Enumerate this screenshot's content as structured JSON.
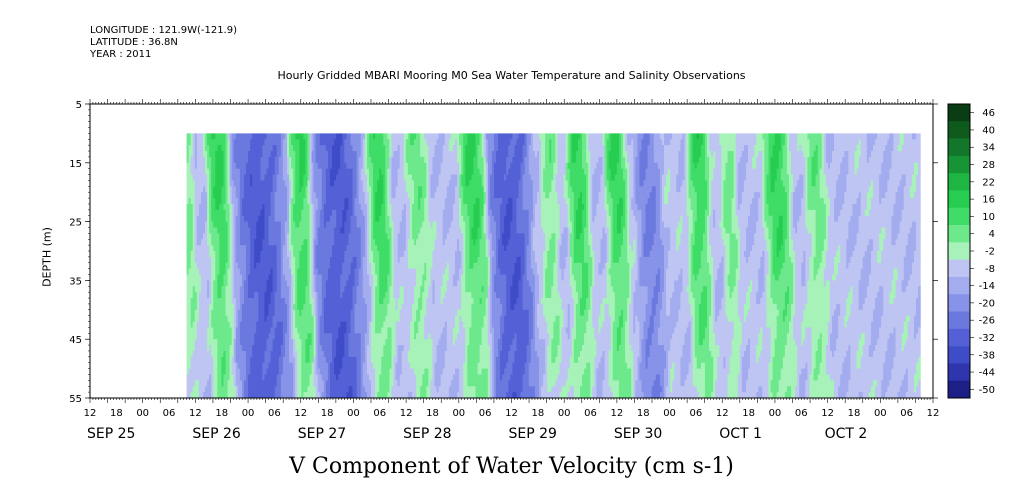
{
  "header": {
    "longitude": "LONGITUDE : 121.9W(-121.9)",
    "latitude": "LATITUDE : 36.8N",
    "year": "YEAR : 2011"
  },
  "chart_data": {
    "type": "heatmap",
    "title": "Hourly Gridded MBARI Mooring M0 Sea Water Temperature and Salinity Observations",
    "xlabel": "V Component of Water Velocity (cm s-1)",
    "ylabel": "DEPTH (m)",
    "y_ticks": [
      "5",
      "15",
      "25",
      "35",
      "45",
      "55"
    ],
    "ylim": [
      55,
      5
    ],
    "x_hour_ticks": [
      "12",
      "18",
      "00",
      "06",
      "12",
      "18",
      "00",
      "06",
      "12",
      "18",
      "00",
      "06",
      "12",
      "18",
      "00",
      "06",
      "12",
      "18",
      "00",
      "06",
      "12",
      "18",
      "00",
      "06",
      "12",
      "18",
      "00",
      "06",
      "12",
      "18",
      "00",
      "06",
      "12"
    ],
    "x_date_labels": [
      "SEP 25",
      "SEP 26",
      "SEP 27",
      "SEP 28",
      "SEP 29",
      "SEP 30",
      "OCT  1",
      "OCT  2"
    ],
    "data_depth_range": [
      10,
      55
    ],
    "colorbar": {
      "labels": [
        "46",
        "40",
        "34",
        "28",
        "22",
        "16",
        "10",
        "4",
        "-2",
        "-8",
        "-14",
        "-20",
        "-26",
        "-32",
        "-38",
        "-44",
        "-50"
      ],
      "colors": [
        "#0a3d14",
        "#0e5a1c",
        "#12772a",
        "#179536",
        "#1eb543",
        "#27cd50",
        "#3fdd67",
        "#6de98c",
        "#a6f2b8",
        "#bfc5f2",
        "#a2acef",
        "#8693e8",
        "#6b79df",
        "#5461d6",
        "#3f4cc8",
        "#2e35ad",
        "#1c1f85"
      ]
    },
    "velocity_bands": [
      {
        "start_hour": 18,
        "end_hour": 23,
        "sign": "positive",
        "strength": "strong"
      },
      {
        "start_hour": 30,
        "end_hour": 34,
        "sign": "positive",
        "strength": "medium"
      },
      {
        "start_hour": 40,
        "end_hour": 46,
        "sign": "positive",
        "strength": "strong"
      },
      {
        "start_hour": 48,
        "end_hour": 66,
        "sign": "negative",
        "strength": "strong"
      },
      {
        "start_hour": 68,
        "end_hour": 74,
        "sign": "positive",
        "strength": "strong"
      },
      {
        "start_hour": 75,
        "end_hour": 92,
        "sign": "negative",
        "strength": "strong"
      },
      {
        "start_hour": 95,
        "end_hour": 101,
        "sign": "positive",
        "strength": "strong"
      },
      {
        "start_hour": 108,
        "end_hour": 114,
        "sign": "positive",
        "strength": "medium"
      },
      {
        "start_hour": 126,
        "end_hour": 134,
        "sign": "positive",
        "strength": "strong"
      },
      {
        "start_hour": 135,
        "end_hour": 150,
        "sign": "negative",
        "strength": "strong"
      },
      {
        "start_hour": 154,
        "end_hour": 158,
        "sign": "positive",
        "strength": "medium"
      },
      {
        "start_hour": 163,
        "end_hour": 169,
        "sign": "positive",
        "strength": "strong"
      },
      {
        "start_hour": 176,
        "end_hour": 182,
        "sign": "positive",
        "strength": "strong"
      },
      {
        "start_hour": 186,
        "end_hour": 194,
        "sign": "negative",
        "strength": "medium"
      },
      {
        "start_hour": 204,
        "end_hour": 210,
        "sign": "positive",
        "strength": "strong"
      },
      {
        "start_hour": 216,
        "end_hour": 219,
        "sign": "positive",
        "strength": "medium"
      },
      {
        "start_hour": 230,
        "end_hour": 238,
        "sign": "positive",
        "strength": "strong"
      },
      {
        "start_hour": 244,
        "end_hour": 250,
        "sign": "positive",
        "strength": "medium"
      }
    ]
  }
}
